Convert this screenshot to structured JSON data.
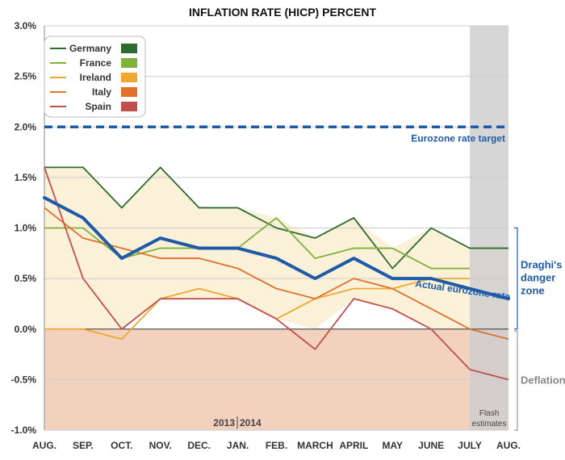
{
  "chart_data": {
    "type": "line",
    "title": "INFLATION RATE (HICP) PERCENT",
    "x": [
      "AUG.",
      "SEP.",
      "OCT.",
      "NOV.",
      "DEC.",
      "JAN.",
      "FEB.",
      "MARCH",
      "APRIL",
      "MAY",
      "JUNE",
      "JULY",
      "AUG."
    ],
    "y_ticks": [
      "3.0%",
      "2.5%",
      "2.0%",
      "1.5%",
      "1.0%",
      "0.5%",
      "0.0%",
      "-0.5%",
      "-1.0%"
    ],
    "ylim": [
      -1.0,
      3.0
    ],
    "grid": true,
    "legend_position": "top-left",
    "series": [
      {
        "name": "Germany",
        "color": "#2e6b2e",
        "values": [
          1.6,
          1.6,
          1.2,
          1.6,
          1.2,
          1.2,
          1.0,
          0.9,
          1.1,
          0.6,
          1.0,
          0.8,
          0.8
        ]
      },
      {
        "name": "France",
        "color": "#7fb23a",
        "values": [
          1.0,
          1.0,
          0.7,
          0.8,
          0.8,
          0.8,
          1.1,
          0.7,
          0.8,
          0.8,
          0.6,
          0.6,
          null
        ]
      },
      {
        "name": "Ireland",
        "color": "#f0a830",
        "values": [
          0.0,
          0.0,
          -0.1,
          0.3,
          0.4,
          0.3,
          0.1,
          0.3,
          0.4,
          0.4,
          0.5,
          0.5,
          null
        ]
      },
      {
        "name": "Italy",
        "color": "#e0702a",
        "values": [
          1.2,
          0.9,
          0.8,
          0.7,
          0.7,
          0.6,
          0.4,
          0.3,
          0.5,
          0.4,
          0.2,
          0.0,
          -0.1
        ]
      },
      {
        "name": "Spain",
        "color": "#c0504d",
        "values": [
          1.6,
          0.5,
          0.0,
          0.3,
          0.3,
          0.3,
          0.1,
          -0.2,
          0.3,
          0.2,
          0.0,
          -0.4,
          -0.5
        ]
      }
    ],
    "eurozone": {
      "label": "Actual eurozone rate",
      "color": "#1f5aa8",
      "values": [
        1.3,
        1.1,
        0.7,
        0.9,
        0.8,
        0.8,
        0.7,
        0.5,
        0.7,
        0.5,
        0.5,
        0.4,
        0.3
      ]
    },
    "target": {
      "value": 2.0,
      "label": "Eurozone rate target",
      "color": "#1f5aa8"
    },
    "annotations": {
      "danger_zone": [
        "Draghi's",
        "danger",
        "zone"
      ],
      "deflation": "Deflation",
      "flash": [
        "Flash",
        "estimates"
      ],
      "year_divider": [
        "2013",
        "2014"
      ]
    },
    "colors": {
      "band_fill": "#fbf0d8",
      "deflation_fill": "#f2d2be",
      "flash_shade": "#cfcfcf",
      "grid": "#cccccc",
      "zero_line": "#555555"
    }
  }
}
